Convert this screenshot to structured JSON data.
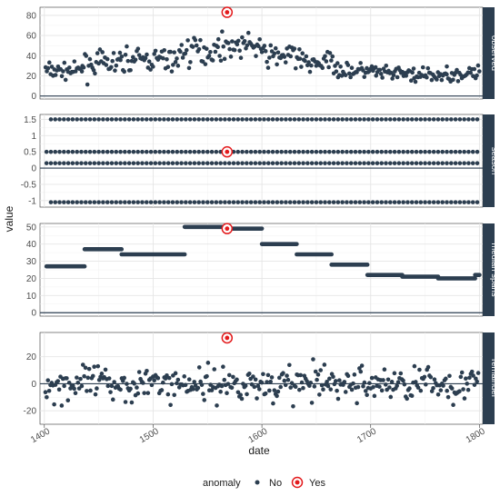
{
  "chart_data": {
    "type": "scatter",
    "xlabel": "date",
    "ylabel": "value",
    "x_ticks": [
      1400,
      1500,
      1600,
      1700,
      1800
    ],
    "x_range": [
      1396,
      1803
    ],
    "colors": {
      "normal": "#2c3e50",
      "anomaly": "#e31a1c",
      "strip": "#2c3e50",
      "grid": "#e5e5e5"
    },
    "legend": {
      "title": "anomaly",
      "items": [
        "No",
        "Yes"
      ],
      "placement": "bottom"
    },
    "anomaly_point": {
      "x": 1568,
      "observed": 83,
      "season": 0.5,
      "trend": 49,
      "remainder": 34
    },
    "panels": [
      {
        "strip": "observed",
        "ylim": [
          -3,
          88
        ],
        "yticks": [
          0,
          20,
          40,
          60,
          80
        ],
        "trend_segments": [
          [
            1400,
            1435,
            25
          ],
          [
            1435,
            1470,
            32
          ],
          [
            1470,
            1525,
            36
          ],
          [
            1525,
            1560,
            45
          ],
          [
            1560,
            1600,
            50
          ],
          [
            1600,
            1635,
            40
          ],
          [
            1635,
            1670,
            33
          ],
          [
            1670,
            1705,
            25
          ],
          [
            1705,
            1740,
            22
          ],
          [
            1740,
            1770,
            20
          ],
          [
            1770,
            1800,
            22
          ]
        ],
        "noise": 9
      },
      {
        "strip": "season",
        "ylim": [
          -1.2,
          1.65
        ],
        "yticks": [
          -1.0,
          -0.5,
          0.0,
          0.5,
          1.0,
          1.5
        ],
        "levels": [
          1.5,
          0.5,
          0.15,
          -1.05
        ],
        "x_start": [
          1406,
          1402,
          1402,
          1406
        ],
        "x_end": [
          1799,
          1799,
          1799,
          1799
        ],
        "step": 4
      },
      {
        "strip": "median_spans",
        "ylim": [
          -2,
          52
        ],
        "yticks": [
          0,
          10,
          20,
          30,
          40,
          50
        ],
        "segments": [
          [
            1402,
            1437,
            27
          ],
          [
            1437,
            1471,
            37
          ],
          [
            1471,
            1529,
            34
          ],
          [
            1529,
            1565,
            50
          ],
          [
            1565,
            1600,
            49
          ],
          [
            1600,
            1632,
            40
          ],
          [
            1632,
            1664,
            34
          ],
          [
            1664,
            1697,
            28
          ],
          [
            1697,
            1729,
            22
          ],
          [
            1729,
            1762,
            21
          ],
          [
            1762,
            1796,
            20
          ],
          [
            1796,
            1829,
            22
          ]
        ]
      },
      {
        "strip": "remainder",
        "ylim": [
          -30,
          38
        ],
        "yticks": [
          -20,
          0,
          20
        ],
        "noise": 9
      }
    ]
  }
}
